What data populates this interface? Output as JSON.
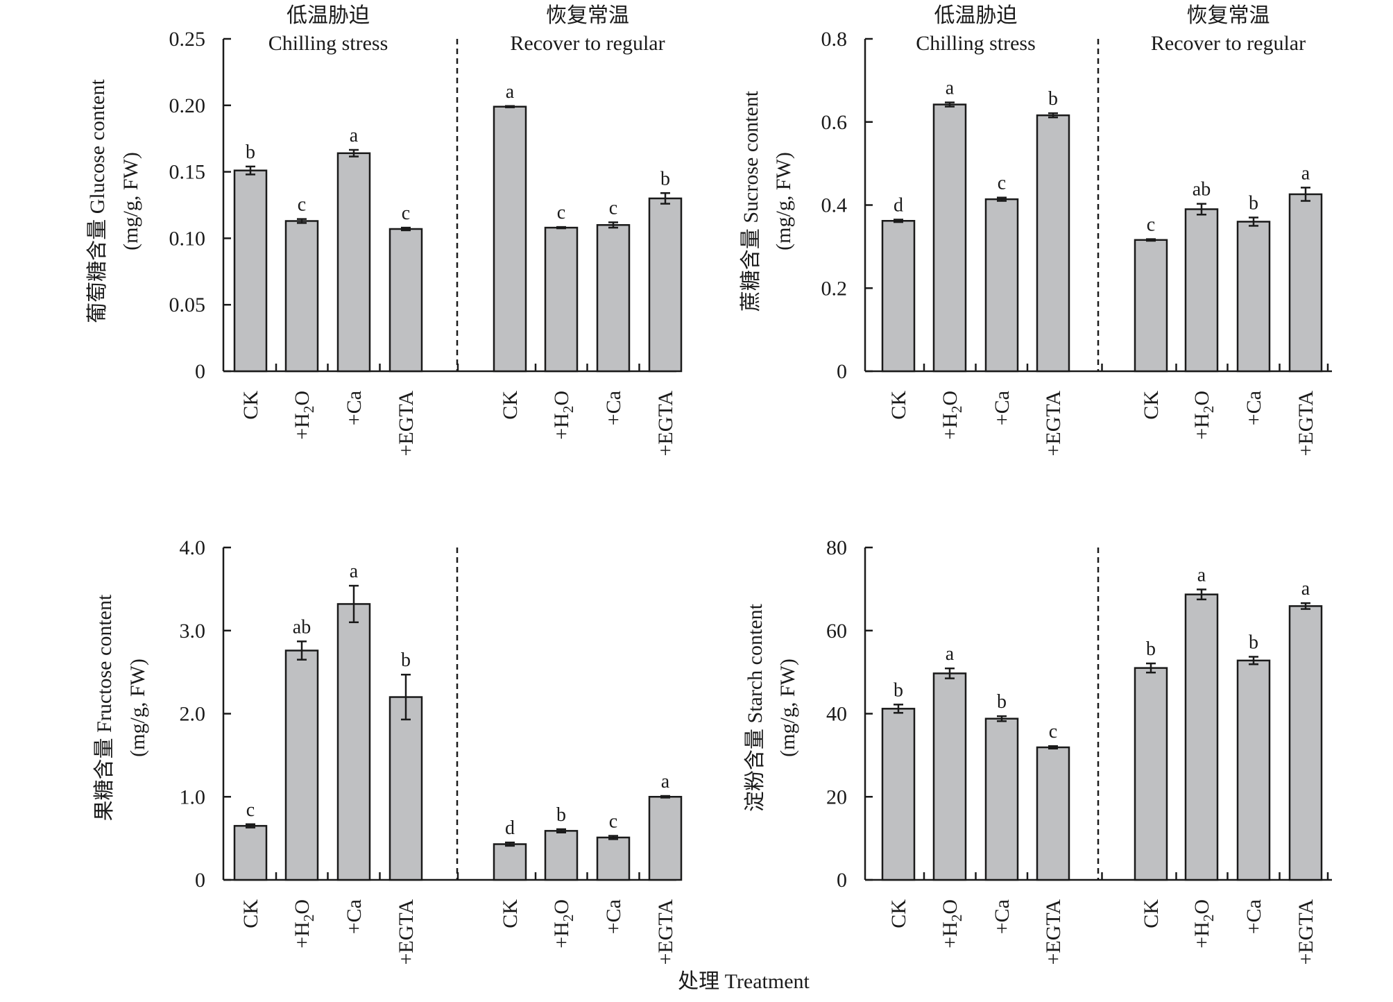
{
  "figure": {
    "xlabel": "处理 Treatment"
  },
  "chart_data": [
    {
      "type": "bar",
      "ylabel_line1": "葡萄糖含量 Glucose content",
      "ylabel_line2": "(mg/g, FW)",
      "ylim": [
        0,
        0.25
      ],
      "yticks": [
        0,
        0.05,
        0.1,
        0.15,
        0.2,
        0.25
      ],
      "ytick_labels": [
        "0",
        "0.05",
        "0.10",
        "0.15",
        "0.20",
        "0.25"
      ],
      "groups": [
        {
          "header_zh": "低温胁迫",
          "header_en": "Chilling stress",
          "categories": [
            "CK",
            "+H2O",
            "+Ca",
            "+EGTA"
          ],
          "values": [
            0.151,
            0.113,
            0.164,
            0.107
          ],
          "errors": [
            0.003,
            0.0015,
            0.0025,
            0.001
          ],
          "letters": [
            "b",
            "c",
            "a",
            "c"
          ]
        },
        {
          "header_zh": "恢复常温",
          "header_en": "Recover to regular",
          "categories": [
            "CK",
            "+H2O",
            "+Ca",
            "+EGTA"
          ],
          "values": [
            0.199,
            0.108,
            0.11,
            0.13
          ],
          "errors": [
            0.0005,
            0.0005,
            0.002,
            0.004
          ],
          "letters": [
            "a",
            "c",
            "c",
            "b"
          ]
        }
      ]
    },
    {
      "type": "bar",
      "ylabel_line1": "蔗糖含量 Sucrose content",
      "ylabel_line2": "(mg/g, FW)",
      "ylim": [
        0,
        0.8
      ],
      "yticks": [
        0,
        0.2,
        0.4,
        0.6,
        0.8
      ],
      "ytick_labels": [
        "0",
        "0.2",
        "0.4",
        "0.6",
        "0.8"
      ],
      "groups": [
        {
          "header_zh": "低温胁迫",
          "header_en": "Chilling stress",
          "categories": [
            "CK",
            "+H2O",
            "+Ca",
            "+EGTA"
          ],
          "values": [
            0.362,
            0.642,
            0.414,
            0.616
          ],
          "errors": [
            0.003,
            0.005,
            0.004,
            0.005
          ],
          "letters": [
            "d",
            "a",
            "c",
            "b"
          ]
        },
        {
          "header_zh": "恢复常温",
          "header_en": "Recover to regular",
          "categories": [
            "CK",
            "+H2O",
            "+Ca",
            "+EGTA"
          ],
          "values": [
            0.316,
            0.39,
            0.36,
            0.426
          ],
          "errors": [
            0.002,
            0.013,
            0.01,
            0.016
          ],
          "letters": [
            "c",
            "ab",
            "b",
            "a"
          ]
        }
      ]
    },
    {
      "type": "bar",
      "ylabel_line1": "果糖含量 Fructose content",
      "ylabel_line2": "(mg/g, FW)",
      "ylim": [
        0,
        4.0
      ],
      "yticks": [
        0,
        1,
        2,
        3,
        4
      ],
      "ytick_labels": [
        "0",
        "1.0",
        "2.0",
        "3.0",
        "4.0"
      ],
      "groups": [
        {
          "header_zh": "",
          "header_en": "",
          "categories": [
            "CK",
            "+H2O",
            "+Ca",
            "+EGTA"
          ],
          "values": [
            0.65,
            2.76,
            3.32,
            2.2
          ],
          "errors": [
            0.02,
            0.11,
            0.22,
            0.27
          ],
          "letters": [
            "c",
            "ab",
            "a",
            "b"
          ]
        },
        {
          "header_zh": "",
          "header_en": "",
          "categories": [
            "CK",
            "+H2O",
            "+Ca",
            "+EGTA"
          ],
          "values": [
            0.43,
            0.59,
            0.51,
            1.0
          ],
          "errors": [
            0.02,
            0.02,
            0.02,
            0.01
          ],
          "letters": [
            "d",
            "b",
            "c",
            "a"
          ]
        }
      ]
    },
    {
      "type": "bar",
      "ylabel_line1": "淀粉含量 Starch content",
      "ylabel_line2": "(mg/g, FW)",
      "ylim": [
        0,
        80
      ],
      "yticks": [
        0,
        20,
        40,
        60,
        80
      ],
      "ytick_labels": [
        "0",
        "20",
        "40",
        "60",
        "80"
      ],
      "groups": [
        {
          "header_zh": "",
          "header_en": "",
          "categories": [
            "CK",
            "+H2O",
            "+Ca",
            "+EGTA"
          ],
          "values": [
            41.2,
            49.7,
            38.8,
            31.9
          ],
          "errors": [
            1.0,
            1.2,
            0.6,
            0.3
          ],
          "letters": [
            "b",
            "a",
            "b",
            "c"
          ]
        },
        {
          "header_zh": "",
          "header_en": "",
          "categories": [
            "CK",
            "+H2O",
            "+Ca",
            "+EGTA"
          ],
          "values": [
            51.0,
            68.7,
            52.8,
            65.9
          ],
          "errors": [
            1.1,
            1.2,
            0.9,
            0.7
          ],
          "letters": [
            "b",
            "a",
            "b",
            "a"
          ]
        }
      ]
    }
  ],
  "style": {
    "bar_fill": "#bfc0c2",
    "bar_stroke": "#1a1a1a",
    "axis_color": "#1a1a1a"
  }
}
